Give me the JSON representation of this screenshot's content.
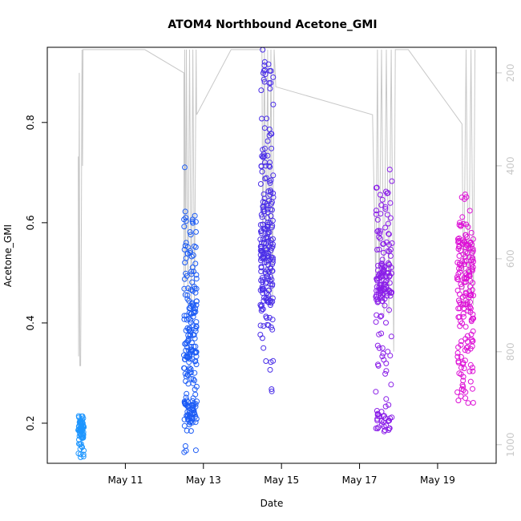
{
  "chart_data": {
    "type": "scatter",
    "title": "ATOM4 Northbound Acetone_GMI",
    "xlabel": "Date",
    "ylabel": "Acetone_GMI",
    "x_unit": "days since May 9 00:00",
    "xlim": [
      "2018-05-09T00:00",
      "2018-05-20T12:00"
    ],
    "x_ticks": [
      {
        "label": "May 11",
        "value": "2018-05-11"
      },
      {
        "label": "May 13",
        "value": "2018-05-13"
      },
      {
        "label": "May 15",
        "value": "2018-05-15"
      },
      {
        "label": "May 17",
        "value": "2018-05-17"
      },
      {
        "label": "May 19",
        "value": "2018-05-19"
      }
    ],
    "ylim": [
      0.12,
      0.95
    ],
    "y_ticks": [
      0.2,
      0.4,
      0.6,
      0.8
    ],
    "secondary_axis": {
      "side": "right",
      "color": "#c8c8c8",
      "reversed": true,
      "ylim": [
        1040,
        145
      ],
      "ticks": [
        200,
        400,
        600,
        800,
        1000
      ]
    },
    "grid": false,
    "legend": "none",
    "marker": "open-circle",
    "color_gradient": [
      "#1f9bff",
      "#ff00cc"
    ],
    "series": [
      {
        "flight": 1,
        "color": "#1e96ff",
        "x_range": [
          "2018-05-09T19:00",
          "2018-05-09T22:30"
        ],
        "clusters": [
          [
            0.19,
            0.012,
            45
          ],
          [
            0.205,
            0.006,
            12
          ],
          [
            0.16,
            0.01,
            10
          ],
          [
            0.14,
            0.006,
            5
          ]
        ]
      },
      {
        "flight": 2,
        "color": "#1d5cf5",
        "x_range": [
          "2018-05-12T12:00",
          "2018-05-12T20:00"
        ],
        "clusters": [
          [
            0.22,
            0.02,
            60
          ],
          [
            0.33,
            0.03,
            60
          ],
          [
            0.42,
            0.04,
            50
          ],
          [
            0.52,
            0.05,
            35
          ],
          [
            0.6,
            0.02,
            10
          ],
          [
            0.15,
            0.01,
            4
          ]
        ]
      },
      {
        "flight": 3,
        "color": "#4a2ee8",
        "x_range": [
          "2018-05-14T11:00",
          "2018-05-14T19:00"
        ],
        "clusters": [
          [
            0.56,
            0.04,
            90
          ],
          [
            0.45,
            0.03,
            50
          ],
          [
            0.66,
            0.05,
            40
          ],
          [
            0.8,
            0.07,
            25
          ],
          [
            0.9,
            0.02,
            8
          ],
          [
            0.33,
            0.04,
            10
          ]
        ]
      },
      {
        "flight": 4,
        "color": "#8a1ee8",
        "x_range": [
          "2018-05-17T10:00",
          "2018-05-17T20:00"
        ],
        "clusters": [
          [
            0.47,
            0.03,
            80
          ],
          [
            0.55,
            0.06,
            40
          ],
          [
            0.63,
            0.04,
            15
          ],
          [
            0.36,
            0.04,
            15
          ],
          [
            0.21,
            0.01,
            20
          ],
          [
            0.19,
            0.005,
            10
          ],
          [
            0.28,
            0.03,
            6
          ]
        ]
      },
      {
        "flight": 5,
        "color": "#dd10d6",
        "x_range": [
          "2018-05-19T12:00",
          "2018-05-19T22:00"
        ],
        "clusters": [
          [
            0.45,
            0.06,
            100
          ],
          [
            0.55,
            0.03,
            40
          ],
          [
            0.34,
            0.03,
            25
          ],
          [
            0.28,
            0.02,
            12
          ],
          [
            0.64,
            0.02,
            5
          ],
          [
            0.24,
            0.004,
            3
          ]
        ]
      }
    ],
    "pressure_trace": {
      "color": "#c8c8c8",
      "points": [
        [
          "2018-05-09T19:00",
          380
        ],
        [
          "2018-05-09T19:15",
          810
        ],
        [
          "2018-05-09T19:40",
          200
        ],
        [
          "2018-05-09T20:00",
          830
        ],
        [
          "2018-05-09T20:30",
          830
        ],
        [
          "2018-05-09T21:00",
          500
        ],
        [
          "2018-05-09T21:20",
          150
        ],
        [
          "2018-05-09T21:40",
          400
        ],
        [
          "2018-05-09T22:00",
          150
        ],
        [
          "2018-05-11T12:00",
          150
        ],
        [
          "2018-05-12T12:00",
          200
        ],
        [
          "2018-05-12T12:05",
          680
        ],
        [
          "2018-05-12T12:30",
          150
        ],
        [
          "2018-05-12T13:00",
          650
        ],
        [
          "2018-05-12T13:30",
          150
        ],
        [
          "2018-05-12T14:30",
          700
        ],
        [
          "2018-05-12T15:30",
          150
        ],
        [
          "2018-05-12T16:30",
          720
        ],
        [
          "2018-05-12T17:30",
          150
        ],
        [
          "2018-05-12T18:30",
          700
        ],
        [
          "2018-05-12T19:30",
          150
        ],
        [
          "2018-05-12T19:50",
          290
        ],
        [
          "2018-05-13T17:00",
          150
        ],
        [
          "2018-05-14T12:00",
          150
        ],
        [
          "2018-05-14T12:30",
          600
        ],
        [
          "2018-05-14T13:30",
          150
        ],
        [
          "2018-05-14T14:30",
          650
        ],
        [
          "2018-05-14T15:30",
          150
        ],
        [
          "2018-05-14T16:30",
          700
        ],
        [
          "2018-05-14T17:30",
          150
        ],
        [
          "2018-05-14T18:30",
          700
        ],
        [
          "2018-05-14T19:30",
          150
        ],
        [
          "2018-05-14T20:30",
          230
        ],
        [
          "2018-05-17T08:00",
          290
        ],
        [
          "2018-05-17T10:00",
          660
        ],
        [
          "2018-05-17T11:00",
          150
        ],
        [
          "2018-05-17T12:00",
          700
        ],
        [
          "2018-05-17T13:30",
          150
        ],
        [
          "2018-05-17T15:00",
          720
        ],
        [
          "2018-05-17T16:30",
          150
        ],
        [
          "2018-05-17T18:00",
          720
        ],
        [
          "2018-05-17T19:30",
          150
        ],
        [
          "2018-05-17T21:00",
          800
        ],
        [
          "2018-05-17T22:00",
          150
        ],
        [
          "2018-05-18T06:00",
          150
        ],
        [
          "2018-05-19T15:00",
          310
        ],
        [
          "2018-05-19T16:00",
          700
        ],
        [
          "2018-05-19T17:30",
          150
        ],
        [
          "2018-05-19T19:00",
          720
        ],
        [
          "2018-05-19T20:30",
          150
        ],
        [
          "2018-05-19T22:00",
          700
        ],
        [
          "2018-05-19T23:00",
          150
        ]
      ]
    }
  }
}
